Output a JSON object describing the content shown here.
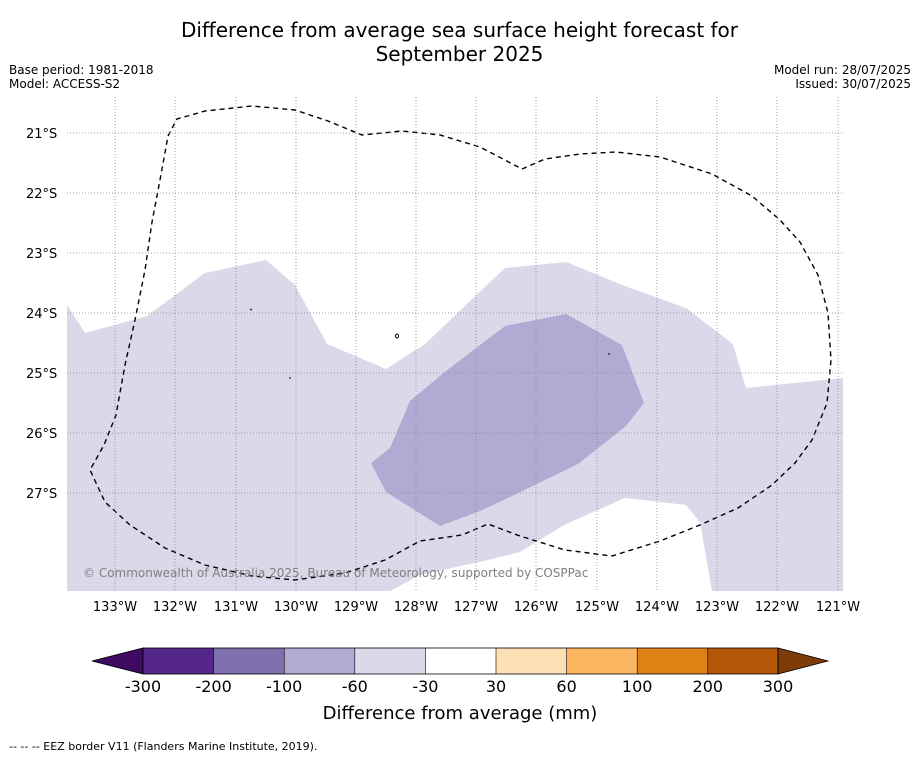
{
  "header": {
    "title_line1": "Difference from average sea surface height forecast for",
    "title_line2": "September 2025",
    "base_period": "Base period: 1981-2018",
    "model": "Model: ACCESS-S2",
    "model_run": "Model run: 28/07/2025",
    "issued": "Issued: 30/07/2025"
  },
  "map": {
    "lon_labels": [
      "133°W",
      "132°W",
      "131°W",
      "130°W",
      "129°W",
      "128°W",
      "127°W",
      "126°W",
      "125°W",
      "124°W",
      "123°W",
      "122°W",
      "121°W"
    ],
    "lat_labels": [
      "21°S",
      "22°S",
      "23°S",
      "24°S",
      "25°S",
      "26°S",
      "27°S"
    ],
    "copyright": "© Commonwealth of Australia 2025, Bureau of Meteorology, supported by COSPPac",
    "colors": {
      "band_neg_60_neg_30": "#d9d9e9",
      "band_neg_100_neg_60": "#b1aad2",
      "eez_border": "#000000",
      "gridline": "#888888"
    }
  },
  "colorbar": {
    "ticks": [
      "-300",
      "-200",
      "-100",
      "-60",
      "-30",
      "30",
      "60",
      "100",
      "200",
      "300"
    ],
    "colors": [
      "#3f0a62",
      "#54268a",
      "#7e71ad",
      "#b1aad2",
      "#d9d9e9",
      "#ffffff",
      "#fee0b5",
      "#fdb660",
      "#e08115",
      "#b35806",
      "#7f3b08"
    ],
    "label": "Difference from average (mm)"
  },
  "footnote": "--  --  -- EEZ border V11 (Flanders Marine Institute, 2019)."
}
